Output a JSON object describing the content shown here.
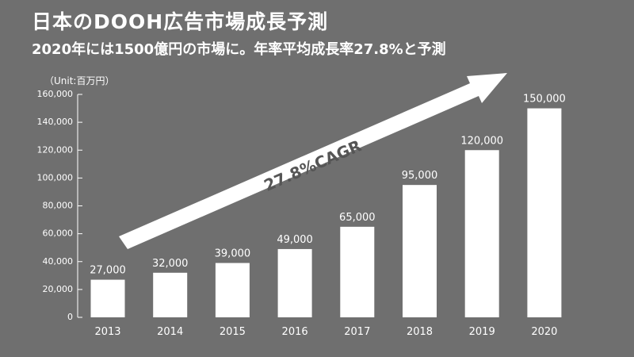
{
  "header": {
    "title": "日本のDOOH広告市場成長予測",
    "subtitle": "2020年には1500億円の市場に。年率平均成長率27.8%と予測"
  },
  "colors": {
    "background": "#6f6f6f",
    "bars": "#ffffff",
    "text": "#ffffff"
  },
  "chart_data": {
    "type": "bar",
    "unit_label": "（Unit:百万円）",
    "categories": [
      "2013",
      "2014",
      "2015",
      "2016",
      "2017",
      "2018",
      "2019",
      "2020"
    ],
    "values": [
      27000,
      32000,
      39000,
      49000,
      65000,
      95000,
      120000,
      150000
    ],
    "value_labels": [
      "27,000",
      "32,000",
      "39,000",
      "49,000",
      "65,000",
      "95,000",
      "120,000",
      "150,000"
    ],
    "ylim": [
      0,
      160000
    ],
    "yticks": [
      0,
      20000,
      40000,
      60000,
      80000,
      100000,
      120000,
      140000,
      160000
    ],
    "ytick_labels": [
      "0",
      "20,000",
      "40,000",
      "60,000",
      "80,000",
      "100,000",
      "120,000",
      "140,000",
      "160,000"
    ],
    "grid": false,
    "annotation": "27.8%CAGR"
  }
}
